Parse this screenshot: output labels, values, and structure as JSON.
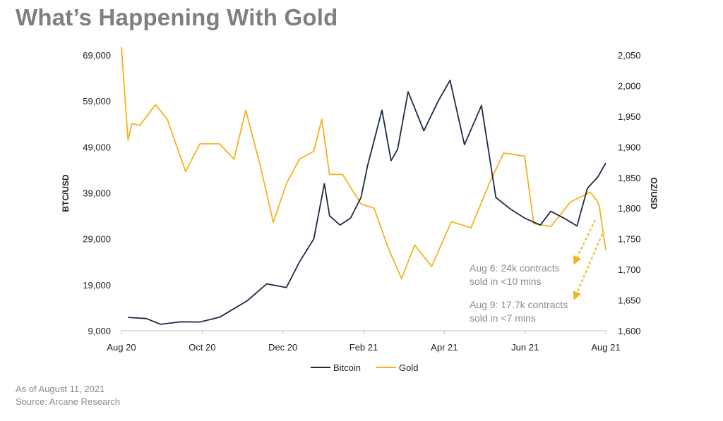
{
  "title": "What’s Happening With Gold",
  "footer": {
    "date": "As of August 11, 2021",
    "source": "Source: Arcane Research"
  },
  "colors": {
    "bitcoin": "#1c2b45",
    "gold": "#f5b21b",
    "title": "#7f7f7f",
    "annotation": "#8c8c8c"
  },
  "chart_data": {
    "type": "line",
    "title": "What’s Happening With Gold",
    "ylabel_left": "BTC/USD",
    "ylabel_right": "OZ/USD",
    "ylim_left": [
      9000,
      69000
    ],
    "ylim_right": [
      1600,
      2050
    ],
    "yticks_left": [
      "9,000",
      "19,000",
      "29,000",
      "39,000",
      "49,000",
      "59,000",
      "69,000"
    ],
    "yticks_right": [
      "1,600",
      "1,650",
      "1,700",
      "1,750",
      "1,800",
      "1,850",
      "1,900",
      "1,950",
      "2,000",
      "2,050"
    ],
    "xticks": [
      "Aug 20",
      "Oct 20",
      "Dec 20",
      "Feb 21",
      "Apr 21",
      "Jun 21",
      "Aug 21"
    ],
    "legend": [
      "Bitcoin",
      "Gold"
    ],
    "legend_position": "bottom-center",
    "grid": false,
    "series": [
      {
        "name": "Bitcoin",
        "axis": "left",
        "x": [
          "2020-08-11",
          "2020-08-25",
          "2020-09-05",
          "2020-09-20",
          "2020-10-05",
          "2020-10-20",
          "2020-10-31",
          "2020-11-10",
          "2020-11-25",
          "2020-12-10",
          "2020-12-20",
          "2020-12-31",
          "2021-01-08",
          "2021-01-12",
          "2021-01-20",
          "2021-01-28",
          "2021-02-05",
          "2021-02-10",
          "2021-02-21",
          "2021-02-28",
          "2021-03-05",
          "2021-03-13",
          "2021-03-25",
          "2021-04-05",
          "2021-04-14",
          "2021-04-25",
          "2021-05-08",
          "2021-05-19",
          "2021-05-30",
          "2021-06-10",
          "2021-06-22",
          "2021-06-30",
          "2021-07-10",
          "2021-07-20",
          "2021-07-28",
          "2021-08-05",
          "2021-08-11"
        ],
        "values": [
          11900,
          11650,
          10400,
          10950,
          10900,
          11950,
          13800,
          15500,
          19200,
          18400,
          24000,
          29000,
          41000,
          34000,
          32000,
          33500,
          38000,
          44900,
          57000,
          46000,
          48500,
          61000,
          52500,
          59000,
          63500,
          49500,
          58000,
          38000,
          35500,
          33500,
          32000,
          35000,
          33500,
          31800,
          40000,
          42500,
          45500
        ]
      },
      {
        "name": "Gold",
        "axis": "right",
        "x": [
          "2020-08-06",
          "2020-08-11",
          "2020-08-14",
          "2020-08-20",
          "2020-09-01",
          "2020-09-10",
          "2020-09-24",
          "2020-10-05",
          "2020-10-20",
          "2020-10-31",
          "2020-11-09",
          "2020-11-20",
          "2020-11-30",
          "2020-12-10",
          "2020-12-20",
          "2020-12-31",
          "2021-01-06",
          "2021-01-12",
          "2021-01-22",
          "2021-02-05",
          "2021-02-15",
          "2021-02-26",
          "2021-03-08",
          "2021-03-18",
          "2021-03-31",
          "2021-04-15",
          "2021-04-30",
          "2021-05-15",
          "2021-05-25",
          "2021-06-10",
          "2021-06-17",
          "2021-06-30",
          "2021-07-15",
          "2021-07-30",
          "2021-08-04",
          "2021-08-06",
          "2021-08-09",
          "2021-08-11"
        ],
        "values": [
          2063,
          1911,
          1938,
          1935,
          1969,
          1945,
          1860,
          1905,
          1905,
          1880,
          1960,
          1870,
          1777,
          1840,
          1880,
          1893,
          1945,
          1855,
          1855,
          1807,
          1800,
          1734,
          1685,
          1740,
          1705,
          1778,
          1768,
          1845,
          1890,
          1885,
          1775,
          1770,
          1810,
          1826,
          1813,
          1804,
          1760,
          1732
        ]
      }
    ],
    "annotations": [
      {
        "lines": [
          "Aug 6: 24k contracts",
          "sold in <10 mins"
        ]
      },
      {
        "lines": [
          "Aug 9: 17.7k contracts",
          "sold in <7 mins"
        ]
      }
    ]
  }
}
